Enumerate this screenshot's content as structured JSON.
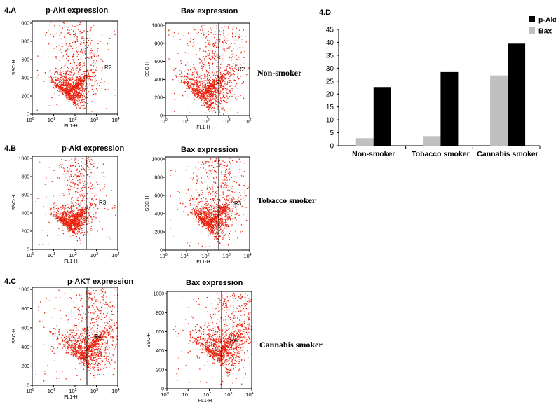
{
  "rows": [
    {
      "panel": "4.A",
      "group": "Non-smoker",
      "plots": [
        {
          "title": "p-Akt  expression",
          "gate": "R2",
          "xlabel": "FL1-H",
          "ylabel": "SSC-H"
        },
        {
          "title": "Bax expression",
          "gate": "R2",
          "xlabel": "FL1-H",
          "ylabel": "SSC-H"
        }
      ]
    },
    {
      "panel": "4.B",
      "group": "Tobacco smoker",
      "plots": [
        {
          "title": "p-Akt  expression",
          "gate": "R3",
          "xlabel": "FL1-H",
          "ylabel": "SSC-H"
        },
        {
          "title": "Bax expression",
          "gate": "R3",
          "xlabel": "FL1-H",
          "ylabel": "SSC-H"
        }
      ]
    },
    {
      "panel": "4.C",
      "group": "Cannabis smoker",
      "plots": [
        {
          "title": "p-AKT  expression",
          "gate": "R4",
          "xlabel": "FL1-H",
          "ylabel": "SSC-H"
        },
        {
          "title": "Bax expression",
          "gate": "R4",
          "xlabel": "FL1-H",
          "ylabel": "SSC-H"
        }
      ]
    }
  ],
  "flow_axes": {
    "x_ticks": [
      {
        "base": "10",
        "exp": "0"
      },
      {
        "base": "10",
        "exp": "1"
      },
      {
        "base": "10",
        "exp": "2"
      },
      {
        "base": "10",
        "exp": "3"
      },
      {
        "base": "10",
        "exp": "4"
      }
    ],
    "y_ticks": [
      "0",
      "200",
      "400",
      "600",
      "800",
      "1000"
    ],
    "y_range": [
      0,
      1023
    ],
    "x_range_log": [
      0,
      4
    ]
  },
  "colors": {
    "dots": "#e8220e",
    "bar_pakt": "#000000",
    "bar_bax": "#c0c0c0",
    "axis": "#000000"
  },
  "chart_data": {
    "panel": "4.D",
    "type": "bar",
    "categories": [
      "Non-smoker",
      "Tobacco smoker",
      "Cannabis smoker"
    ],
    "series": [
      {
        "name": "p-Akt",
        "values": [
          22.7,
          28.5,
          39.5
        ]
      },
      {
        "name": "Bax",
        "values": [
          2.9,
          3.7,
          27.2
        ]
      }
    ],
    "y_ticks": [
      "0",
      "5",
      "10",
      "15",
      "20",
      "25",
      "30",
      "35",
      "40",
      "45"
    ],
    "ylim": [
      0,
      45
    ],
    "legend_position": "top-right"
  }
}
